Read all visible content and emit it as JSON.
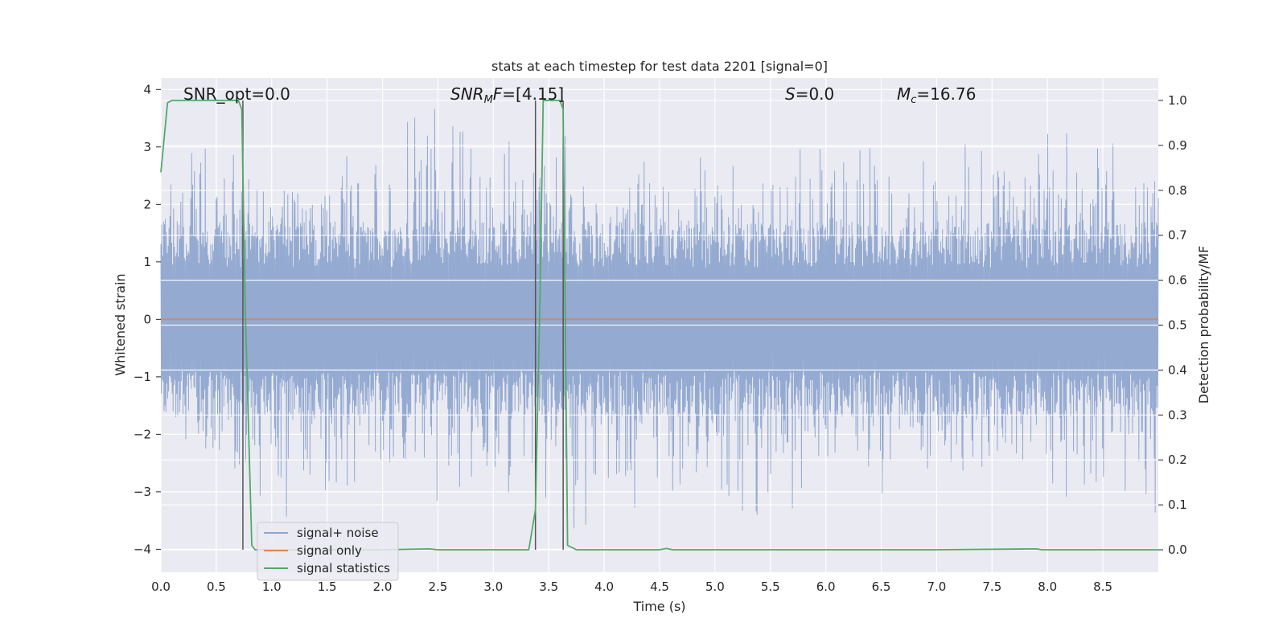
{
  "chart_data": {
    "type": "line",
    "title": "stats at each timestep for test data 2201 [signal=0]",
    "xlabel": "Time (s)",
    "ylabel": "Whitened strain",
    "y2label": "Detection probability/MF",
    "xlim": [
      0.0,
      9.0
    ],
    "ylim": [
      -4.4,
      4.2
    ],
    "y2lim": [
      -0.05,
      1.05
    ],
    "x_ticks": [
      "0.0",
      "0.5",
      "1.0",
      "1.5",
      "2.0",
      "2.5",
      "3.0",
      "3.5",
      "4.0",
      "4.5",
      "5.0",
      "5.5",
      "6.0",
      "6.5",
      "7.0",
      "7.5",
      "8.0",
      "8.5"
    ],
    "y_ticks": [
      "4",
      "3",
      "2",
      "1",
      "0",
      "−1",
      "−2",
      "−3",
      "−4"
    ],
    "y2_ticks": [
      "1.0",
      "0.9",
      "0.8",
      "0.7",
      "0.6",
      "0.5",
      "0.4",
      "0.3",
      "0.2",
      "0.1",
      "0.0"
    ],
    "grid": true,
    "legend_position": "lower-left",
    "annotations": {
      "snr_opt": "SNR_opt=0.0",
      "snr_mf_sym": "SNR",
      "snr_mf_sub": "M",
      "snr_mf_rest": "F",
      "snr_mf_val": "=[4.15]",
      "s_sym": "S",
      "s_val": "=0.0",
      "mc_sym": "M",
      "mc_sub": "c",
      "mc_val": "=16.76"
    },
    "vlines_x": [
      0.74,
      3.38,
      3.63
    ],
    "series": [
      {
        "name": "signal+ noise",
        "color": "#8fa6cf",
        "description_values": "whitened noise envelope, approx. ±1.5 dense band with peaks to ±3.8",
        "envelope_peaks": [
          [
            0.05,
            2.2,
            -1.5
          ],
          [
            0.3,
            3.2,
            -2.9
          ],
          [
            0.5,
            3.3,
            -2.8
          ],
          [
            0.9,
            3.0,
            -3.3
          ],
          [
            1.3,
            2.6,
            -3.6
          ],
          [
            1.8,
            3.1,
            -2.9
          ],
          [
            2.5,
            3.8,
            -3.2
          ],
          [
            2.9,
            3.1,
            -3.0
          ],
          [
            3.55,
            3.4,
            -3.3
          ],
          [
            3.9,
            2.7,
            -4.0
          ],
          [
            4.4,
            3.0,
            -3.3
          ],
          [
            4.8,
            2.9,
            -3.1
          ],
          [
            5.5,
            3.0,
            -3.5
          ],
          [
            6.0,
            3.2,
            -3.3
          ],
          [
            6.6,
            3.1,
            -3.1
          ],
          [
            7.0,
            3.1,
            -3.2
          ],
          [
            7.6,
            3.0,
            -3.0
          ],
          [
            8.1,
            3.3,
            -3.1
          ],
          [
            8.7,
            3.5,
            -3.0
          ],
          [
            8.95,
            3.2,
            -3.4
          ]
        ]
      },
      {
        "name": "signal only",
        "color": "#dd8452",
        "x": [
          0.0,
          9.0
        ],
        "y": [
          0.0,
          0.0
        ]
      },
      {
        "name": "signal statistics",
        "color": "#55a868",
        "axis": "right",
        "x": [
          0.0,
          0.06,
          0.1,
          0.15,
          0.25,
          0.7,
          0.73,
          0.76,
          0.82,
          0.85,
          1.0,
          1.5,
          2.0,
          2.42,
          2.5,
          3.0,
          3.32,
          3.38,
          3.42,
          3.45,
          3.6,
          3.63,
          3.67,
          3.75,
          4.0,
          4.5,
          4.56,
          4.62,
          5.0,
          6.0,
          7.0,
          7.9,
          7.95,
          8.0,
          8.5,
          9.0
        ],
        "y": [
          0.84,
          0.995,
          1.0,
          1.0,
          1.0,
          1.0,
          0.98,
          0.55,
          0.01,
          0.0,
          0.0,
          0.0,
          0.0,
          0.002,
          0.0,
          0.0,
          0.0,
          0.09,
          0.55,
          1.0,
          1.0,
          0.98,
          0.01,
          0.0,
          0.0,
          0.0,
          0.003,
          0.0,
          0.0,
          0.0,
          0.0,
          0.002,
          0.0,
          0.0,
          0.0,
          0.0
        ]
      }
    ]
  }
}
